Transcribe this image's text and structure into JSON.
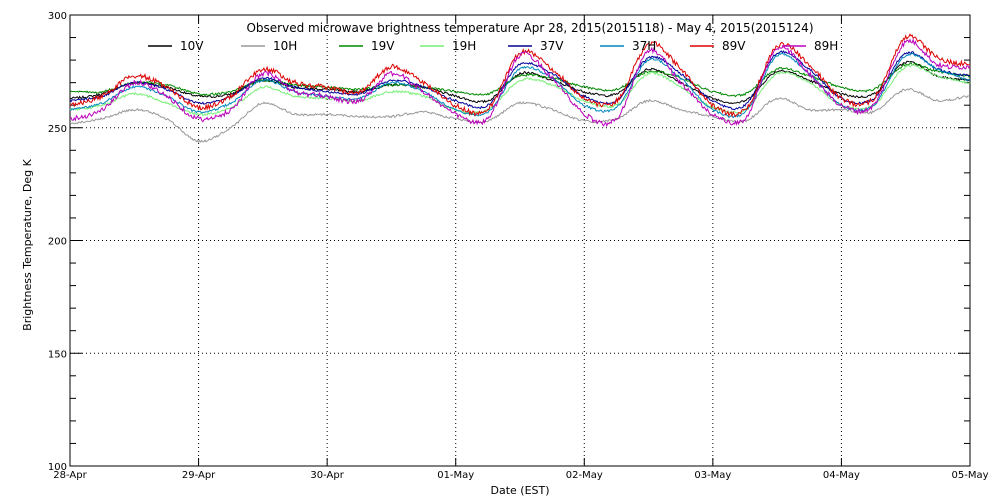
{
  "chart_data": {
    "type": "line",
    "title": "Observed microwave brightness temperature Apr 28, 2015(2015118) - May  4, 2015(2015124)",
    "xlabel": "Date (EST)",
    "ylabel": "Brightness Temperature, Deg K",
    "ylim": [
      100,
      300
    ],
    "yticks": [
      100,
      150,
      200,
      250,
      300
    ],
    "xlim": [
      0,
      7
    ],
    "x_ticks": [
      0,
      1,
      2,
      3,
      4,
      5,
      6,
      7
    ],
    "x_tick_labels": [
      "28-Apr",
      "29-Apr",
      "30-Apr",
      "01-May",
      "02-May",
      "03-May",
      "04-May",
      "05-May"
    ],
    "grid": true,
    "legend_position": "top",
    "x": [
      0,
      0.25,
      0.5,
      0.75,
      1,
      1.25,
      1.5,
      1.75,
      2,
      2.25,
      2.5,
      2.75,
      3,
      3.25,
      3.5,
      3.75,
      4,
      4.25,
      4.5,
      4.75,
      5,
      5.25,
      5.5,
      5.75,
      6,
      6.25,
      6.5,
      6.75,
      7
    ],
    "series": [
      {
        "name": "10V",
        "color": "#000000",
        "values": [
          263,
          265,
          270,
          268,
          264,
          265,
          271,
          268,
          267,
          266,
          269,
          268,
          264,
          262,
          274,
          271,
          266,
          265,
          276,
          270,
          263,
          262,
          275,
          271,
          265,
          265,
          279,
          273,
          271
        ]
      },
      {
        "name": "10H",
        "color": "#999999",
        "values": [
          252,
          254,
          258,
          254,
          244,
          250,
          261,
          256,
          256,
          255,
          255,
          257,
          254,
          253,
          261,
          258,
          253,
          254,
          262,
          258,
          255,
          253,
          263,
          258,
          258,
          257,
          267,
          262,
          264
        ]
      },
      {
        "name": "19V",
        "color": "#008800",
        "values": [
          266,
          266,
          270,
          269,
          265,
          266,
          271,
          269,
          268,
          267,
          269,
          268,
          266,
          265,
          273,
          272,
          268,
          267,
          275,
          272,
          266,
          265,
          276,
          273,
          268,
          267,
          278,
          275,
          273
        ]
      },
      {
        "name": "19H",
        "color": "#77ee77",
        "values": [
          258,
          260,
          265,
          261,
          256,
          259,
          268,
          264,
          263,
          262,
          266,
          264,
          258,
          258,
          271,
          269,
          262,
          260,
          274,
          268,
          259,
          258,
          274,
          270,
          260,
          260,
          277,
          273,
          270
        ]
      },
      {
        "name": "37V",
        "color": "#000099",
        "values": [
          262,
          264,
          270,
          267,
          261,
          264,
          272,
          268,
          266,
          265,
          271,
          268,
          262,
          260,
          278,
          274,
          264,
          262,
          281,
          274,
          262,
          260,
          283,
          276,
          263,
          263,
          283,
          276,
          273
        ]
      },
      {
        "name": "37H",
        "color": "#0088bb",
        "values": [
          258,
          261,
          268,
          264,
          257,
          261,
          271,
          266,
          264,
          263,
          270,
          266,
          258,
          257,
          276,
          272,
          260,
          259,
          280,
          272,
          258,
          257,
          282,
          274,
          260,
          260,
          282,
          276,
          271
        ]
      },
      {
        "name": "89V",
        "color": "#dd0000",
        "values": [
          260,
          264,
          273,
          268,
          259,
          264,
          276,
          270,
          268,
          266,
          277,
          270,
          260,
          258,
          283,
          276,
          263,
          262,
          287,
          276,
          260,
          258,
          286,
          278,
          263,
          263,
          290,
          281,
          278
        ]
      },
      {
        "name": "89H",
        "color": "#bb00bb",
        "values": [
          254,
          258,
          270,
          264,
          254,
          258,
          274,
          266,
          264,
          262,
          274,
          266,
          256,
          254,
          282,
          272,
          256,
          254,
          284,
          270,
          256,
          254,
          285,
          274,
          260,
          260,
          288,
          278,
          277
        ]
      }
    ]
  }
}
